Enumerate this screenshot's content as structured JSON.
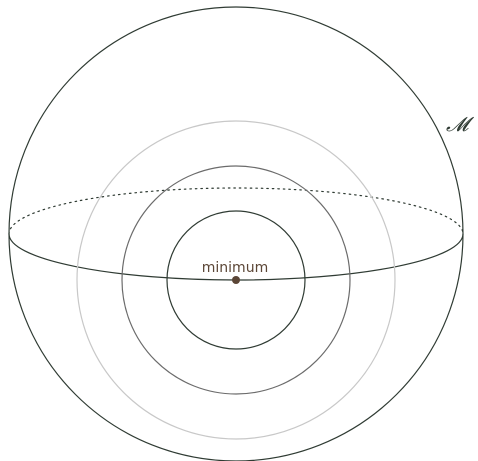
{
  "diagram": {
    "manifold_label": "𝓜",
    "minimum_label": "minimum",
    "colors": {
      "sphere_outline": "#2f3b33",
      "equator": "#2f3b33",
      "contour_inner": "#2f3b33",
      "contour_middle": "#6b6b6b",
      "contour_outer": "#c8c8c8",
      "minimum_point": "#5b4636",
      "minimum_text": "#5b4636",
      "manifold_text": "#2f3b33"
    },
    "contours": [
      {
        "name": "contour-outer",
        "level": 3
      },
      {
        "name": "contour-middle",
        "level": 2
      },
      {
        "name": "contour-inner",
        "level": 1
      }
    ]
  }
}
